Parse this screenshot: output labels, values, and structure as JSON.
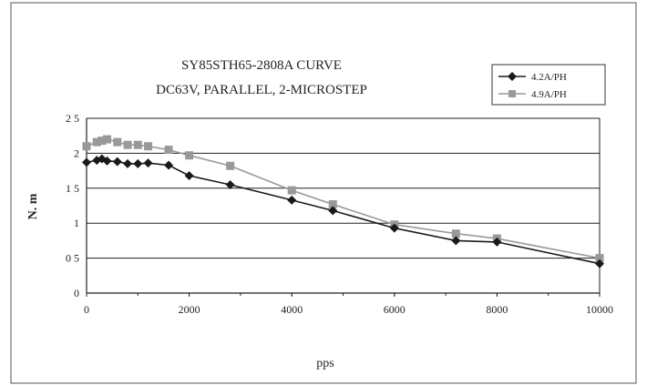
{
  "chart_data": {
    "type": "line",
    "title": "SY85STH65-2808A CURVE",
    "subtitle": "DC63V, PARALLEL, 2-MICROSTEP",
    "xlabel": "pps",
    "ylabel": "N. m",
    "xlim": [
      0,
      10000
    ],
    "ylim": [
      0,
      2.5
    ],
    "xticks": [
      "0",
      "2000",
      "4000",
      "6000",
      "8000",
      "10000"
    ],
    "yticks": [
      "0",
      "0 5",
      "1",
      "1 5",
      "2",
      "2 5"
    ],
    "grid": "horizontal",
    "legend_position": "top-right",
    "series": [
      {
        "name": "4.2A/PH",
        "color": "#1a1a1a",
        "marker": "diamond",
        "x": [
          0,
          200,
          300,
          400,
          600,
          800,
          1000,
          1200,
          1600,
          2000,
          2800,
          4000,
          4800,
          6000,
          7200,
          8000,
          10000
        ],
        "y": [
          1.87,
          1.9,
          1.92,
          1.89,
          1.88,
          1.85,
          1.85,
          1.86,
          1.83,
          1.68,
          1.55,
          1.33,
          1.18,
          0.93,
          0.75,
          0.73,
          0.42
        ]
      },
      {
        "name": "4.9A/PH",
        "color": "#999999",
        "marker": "square",
        "x": [
          0,
          200,
          300,
          400,
          600,
          800,
          1000,
          1200,
          1600,
          2000,
          2800,
          4000,
          4800,
          6000,
          7200,
          8000,
          10000
        ],
        "y": [
          2.1,
          2.16,
          2.18,
          2.2,
          2.16,
          2.12,
          2.12,
          2.1,
          2.05,
          1.97,
          1.82,
          1.47,
          1.27,
          0.98,
          0.85,
          0.78,
          0.5
        ]
      }
    ]
  }
}
